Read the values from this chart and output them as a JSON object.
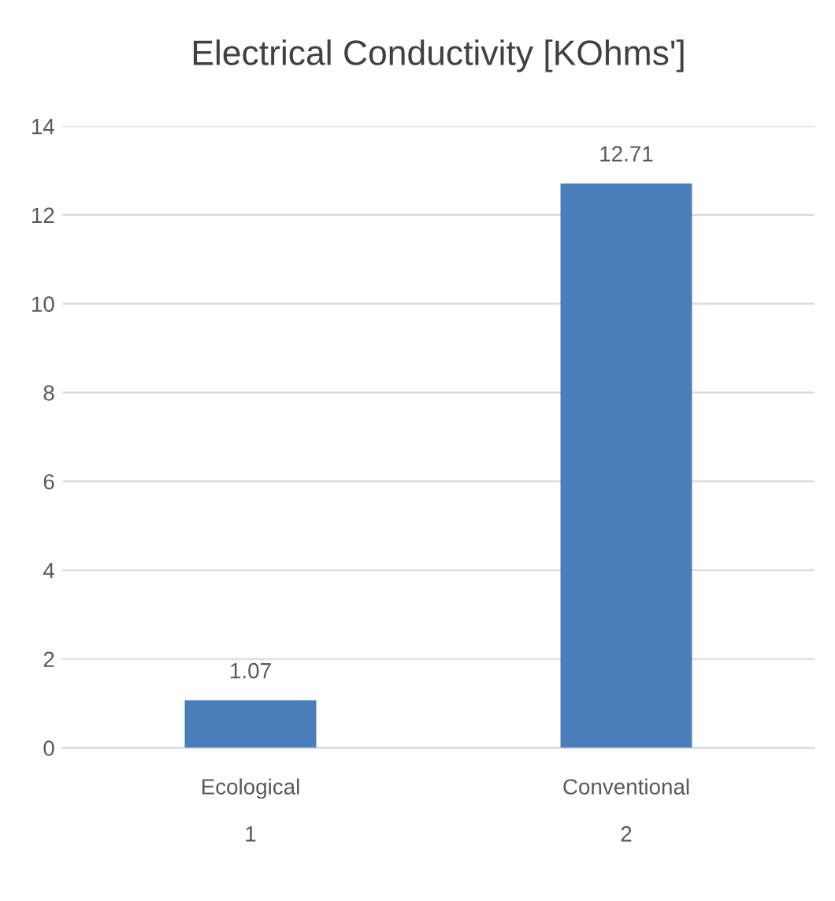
{
  "chart_data": {
    "type": "bar",
    "title": "Electrical Conductivity [KOhms']",
    "categories": [
      "Ecological\n\n1",
      "Conventional\n\n2"
    ],
    "values": [
      1.07,
      12.71
    ],
    "color": "#4a7ebb",
    "ylim": [
      0,
      14
    ],
    "yticks": [
      0,
      2,
      4,
      6,
      8,
      10,
      12,
      14
    ],
    "grid": "y",
    "data_labels": true
  }
}
